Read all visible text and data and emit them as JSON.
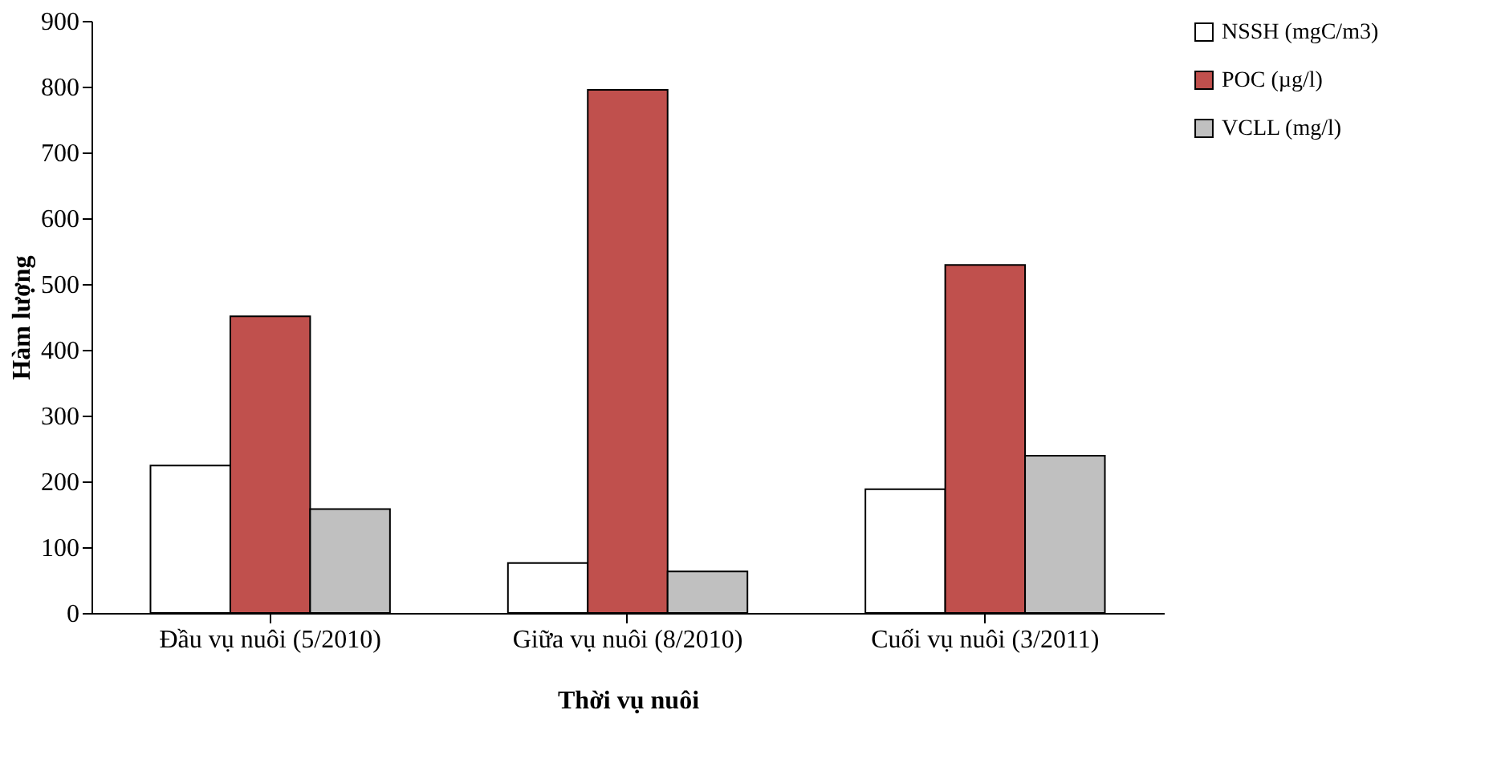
{
  "chart_data": {
    "type": "bar",
    "xlabel": "Thời vụ nuôi",
    "ylabel": "Hàm lượng",
    "categories": [
      "Đầu vụ nuôi (5/2010)",
      "Giữa vụ nuôi (8/2010)",
      "Cuối vụ nuôi (3/2011)"
    ],
    "series": [
      {
        "name": "NSSH (mgC/m3)",
        "color": "#ffffff",
        "values": [
          224,
          76,
          188
        ]
      },
      {
        "name": "POC (µg/l)",
        "color": "#c0504d",
        "values": [
          451,
          795,
          529
        ]
      },
      {
        "name": "VCLL (mg/l)",
        "color": "#c0c0c0",
        "values": [
          158,
          63,
          239
        ]
      }
    ],
    "ylim": [
      0,
      900
    ],
    "yticks": [
      0,
      100,
      200,
      300,
      400,
      500,
      600,
      700,
      800,
      900
    ],
    "grid": false,
    "legend": "right"
  }
}
